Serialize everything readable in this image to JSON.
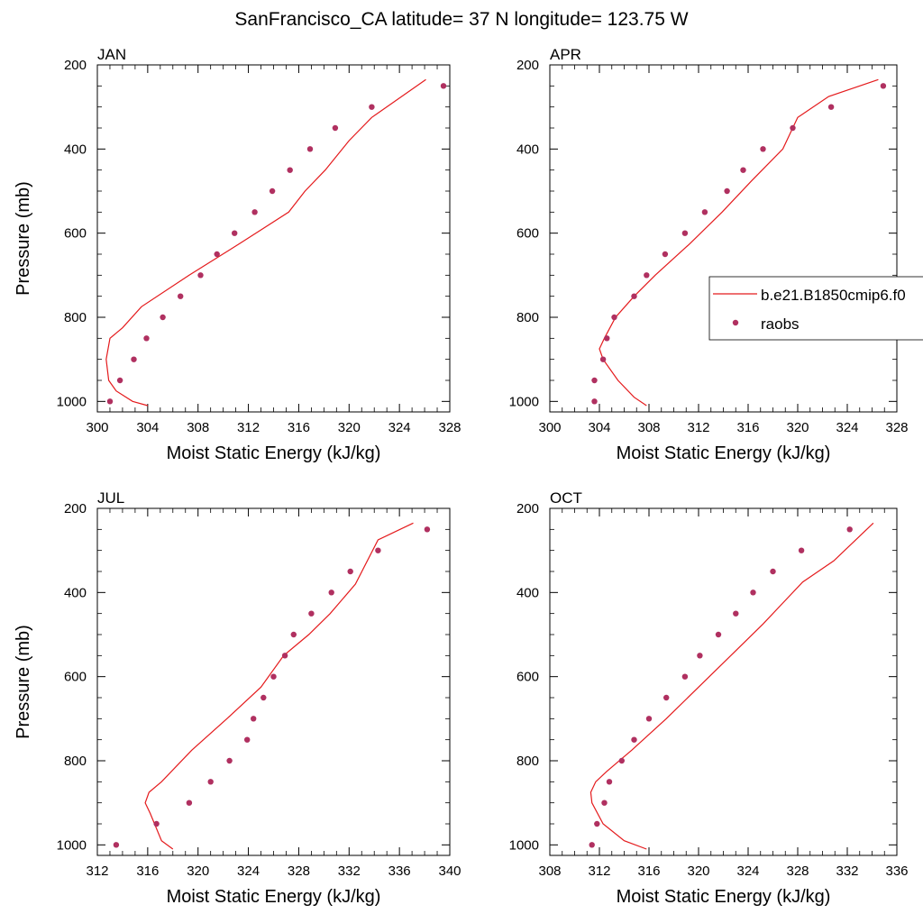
{
  "title": "SanFrancisco_CA  latitude= 37 N longitude= 123.75 W",
  "legend": {
    "entries": [
      {
        "label": "b.e21.B1850cmip6.f0",
        "type": "line",
        "color": "#e41a1c"
      },
      {
        "label": "raobs",
        "type": "marker",
        "color": "#b03060"
      }
    ]
  },
  "chart_data": [
    {
      "type": "line",
      "title": "JAN",
      "xlabel": "Moist Static Energy (kJ/kg)",
      "ylabel": "Pressure (mb)",
      "xlim": [
        300,
        328
      ],
      "ylim": [
        1025,
        200
      ],
      "xticks": [
        300,
        304,
        308,
        312,
        316,
        320,
        324,
        328
      ],
      "yticks": [
        200,
        400,
        600,
        800,
        1000
      ],
      "series": [
        {
          "name": "b.e21.B1850cmip6.f0",
          "kind": "line",
          "color": "#e41a1c",
          "x": [
            304.0,
            302.8,
            301.5,
            300.9,
            300.7,
            301.0,
            302.0,
            303.5,
            307.3,
            311.3,
            315.2,
            316.5,
            318.1,
            320.0,
            321.8,
            326.1
          ],
          "y": [
            1010,
            1000,
            975,
            950,
            900,
            850,
            825,
            775,
            700,
            625,
            550,
            500,
            450,
            380,
            325,
            235
          ]
        },
        {
          "name": "raobs",
          "kind": "scatter",
          "color": "#b03060",
          "x": [
            301.0,
            301.8,
            302.9,
            303.9,
            305.2,
            306.6,
            308.2,
            309.5,
            310.9,
            312.5,
            313.9,
            315.3,
            316.9,
            318.9,
            321.8,
            327.5
          ],
          "y": [
            1000,
            950,
            900,
            850,
            800,
            750,
            700,
            650,
            600,
            550,
            500,
            450,
            400,
            350,
            300,
            250
          ]
        }
      ]
    },
    {
      "type": "line",
      "title": "APR",
      "xlabel": "Moist Static Energy (kJ/kg)",
      "ylabel": "",
      "xlim": [
        300,
        328
      ],
      "ylim": [
        1025,
        200
      ],
      "xticks": [
        300,
        304,
        308,
        312,
        316,
        320,
        324,
        328
      ],
      "yticks": [
        200,
        400,
        600,
        800,
        1000
      ],
      "series": [
        {
          "name": "b.e21.B1850cmip6.f0",
          "kind": "line",
          "color": "#e41a1c",
          "x": [
            307.8,
            306.8,
            305.5,
            304.3,
            304.0,
            304.4,
            305.3,
            306.8,
            308.5,
            311.3,
            313.9,
            316.3,
            318.8,
            320.0,
            322.5,
            326.5
          ],
          "y": [
            1010,
            990,
            950,
            900,
            875,
            850,
            800,
            750,
            700,
            625,
            550,
            475,
            400,
            325,
            275,
            235
          ]
        },
        {
          "name": "raobs",
          "kind": "scatter",
          "color": "#b03060",
          "x": [
            303.6,
            303.6,
            304.3,
            304.6,
            305.2,
            306.8,
            307.8,
            309.3,
            310.9,
            312.5,
            314.3,
            315.6,
            317.2,
            319.6,
            322.7,
            326.9
          ],
          "y": [
            1000,
            950,
            900,
            850,
            800,
            750,
            700,
            650,
            600,
            550,
            500,
            450,
            400,
            350,
            300,
            250
          ]
        }
      ]
    },
    {
      "type": "line",
      "title": "JUL",
      "xlabel": "Moist Static Energy (kJ/kg)",
      "ylabel": "Pressure (mb)",
      "xlim": [
        312,
        340
      ],
      "ylim": [
        1025,
        200
      ],
      "xticks": [
        312,
        316,
        320,
        324,
        328,
        332,
        336,
        340
      ],
      "yticks": [
        200,
        400,
        600,
        800,
        1000
      ],
      "series": [
        {
          "name": "b.e21.B1850cmip6.f0",
          "kind": "line",
          "color": "#e41a1c",
          "x": [
            318.0,
            317.1,
            316.2,
            315.8,
            316.1,
            317.1,
            319.5,
            322.3,
            325.0,
            326.8,
            328.8,
            330.5,
            332.5,
            334.3,
            337.1
          ],
          "y": [
            1010,
            990,
            925,
            900,
            875,
            850,
            775,
            700,
            625,
            550,
            500,
            450,
            380,
            275,
            235
          ]
        },
        {
          "name": "raobs",
          "kind": "scatter",
          "color": "#b03060",
          "x": [
            313.5,
            316.7,
            319.3,
            321.0,
            322.5,
            323.9,
            324.4,
            325.2,
            326.0,
            326.9,
            327.6,
            329.0,
            330.6,
            332.1,
            334.3,
            338.2
          ],
          "y": [
            1000,
            950,
            900,
            850,
            800,
            750,
            700,
            650,
            600,
            550,
            500,
            450,
            400,
            350,
            300,
            250
          ]
        }
      ]
    },
    {
      "type": "line",
      "title": "OCT",
      "xlabel": "Moist Static Energy (kJ/kg)",
      "ylabel": "",
      "xlim": [
        308,
        336
      ],
      "ylim": [
        1025,
        200
      ],
      "xticks": [
        308,
        312,
        316,
        320,
        324,
        328,
        332,
        336
      ],
      "yticks": [
        200,
        400,
        600,
        800,
        1000
      ],
      "series": [
        {
          "name": "b.e21.B1850cmip6.f0",
          "kind": "line",
          "color": "#e41a1c",
          "x": [
            315.8,
            314.0,
            312.3,
            311.4,
            311.3,
            311.7,
            312.6,
            314.6,
            317.4,
            320.0,
            322.6,
            325.2,
            326.8,
            328.4,
            330.9,
            334.1
          ],
          "y": [
            1010,
            990,
            950,
            900,
            875,
            850,
            825,
            775,
            700,
            625,
            550,
            475,
            425,
            375,
            325,
            235
          ]
        },
        {
          "name": "raobs",
          "kind": "scatter",
          "color": "#b03060",
          "x": [
            311.4,
            311.8,
            312.4,
            312.8,
            313.8,
            314.8,
            316.0,
            317.4,
            318.9,
            320.1,
            321.6,
            323.0,
            324.4,
            326.0,
            328.3,
            332.2
          ],
          "y": [
            1000,
            950,
            900,
            850,
            800,
            750,
            700,
            650,
            600,
            550,
            500,
            450,
            400,
            350,
            300,
            250
          ]
        }
      ]
    }
  ]
}
